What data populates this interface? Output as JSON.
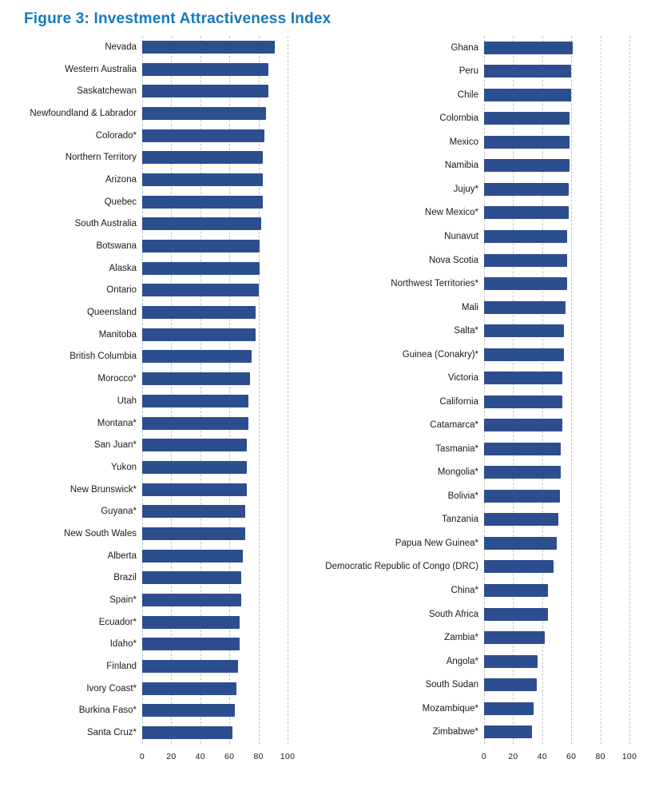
{
  "title": "Figure 3: Investment Attractiveness Index",
  "colors": {
    "title": "#1679bd",
    "bar": "#2d4e8e",
    "grid": "#c4c4c4"
  },
  "chart_data": [
    {
      "type": "bar",
      "orientation": "horizontal",
      "panel": "left",
      "xlim": [
        0,
        100
      ],
      "xticks": [
        0,
        20,
        40,
        60,
        80,
        100
      ],
      "grid": "dashed-vertical",
      "categories": [
        "Nevada",
        "Western Australia",
        "Saskatchewan",
        "Newfoundland & Labrador",
        "Colorado*",
        "Northern Territory",
        "Arizona",
        "Quebec",
        "South Australia",
        "Botswana",
        "Alaska",
        "Ontario",
        "Queensland",
        "Manitoba",
        "British Columbia",
        "Morocco*",
        "Utah",
        "Montana*",
        "San Juan*",
        "Yukon",
        "New Brunswick*",
        "Guyana*",
        "New South Wales",
        "Alberta",
        "Brazil",
        "Spain*",
        "Ecuador*",
        "Idaho*",
        "Finland",
        "Ivory Coast*",
        "Burkina Faso*",
        "Santa Cruz*"
      ],
      "values": [
        91,
        87,
        87,
        85,
        84,
        83,
        83,
        83,
        82,
        81,
        81,
        80,
        78,
        78,
        75,
        74,
        73,
        73,
        72,
        72,
        72,
        71,
        71,
        69,
        68,
        68,
        67,
        67,
        66,
        65,
        64,
        62
      ]
    },
    {
      "type": "bar",
      "orientation": "horizontal",
      "panel": "right",
      "xlim": [
        0,
        100
      ],
      "xticks": [
        0,
        20,
        40,
        60,
        80,
        100
      ],
      "grid": "dashed-vertical",
      "categories": [
        "Ghana",
        "Peru",
        "Chile",
        "Colombia",
        "Mexico",
        "Namibia",
        "Jujuy*",
        "New Mexico*",
        "Nunavut",
        "Nova Scotia",
        "Northwest Territories*",
        "Mali",
        "Salta*",
        "Guinea (Conakry)*",
        "Victoria",
        "California",
        "Catamarca*",
        "Tasmania*",
        "Mongolia*",
        "Bolivia*",
        "Tanzania",
        "Papua New Guinea*",
        "Democratic Republic of Congo (DRC)",
        "China*",
        "South Africa",
        "Zambia*",
        "Angola*",
        "South Sudan",
        "Mozambique*",
        "Zimbabwe*"
      ],
      "values": [
        61,
        60,
        60,
        59,
        59,
        59,
        58,
        58,
        57,
        57,
        57,
        56,
        55,
        55,
        54,
        54,
        54,
        53,
        53,
        52,
        51,
        50,
        48,
        44,
        44,
        42,
        37,
        36,
        34,
        33
      ]
    }
  ]
}
